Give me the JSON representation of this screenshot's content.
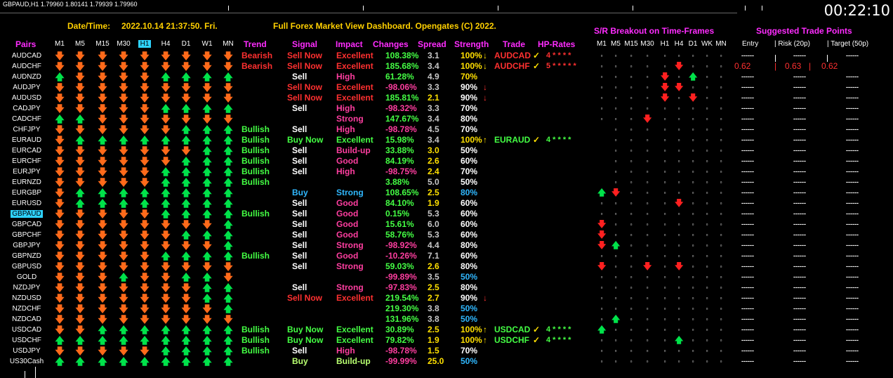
{
  "chart_title": "GBPAUD,H1  1.79960 1.80141 1.79939 1.79960",
  "clock": "00:22:10",
  "header": {
    "datetime_label": "Date/Time:",
    "datetime_value": "2022.10.14 21:37:50. Fri.",
    "title": "Full Forex Market View Dashboard. Opengates (C) 2022.",
    "sr_title": "S/R Breakout on Time-Frames",
    "suggest_title": "Suggested Trade Points"
  },
  "columns": {
    "pairs": "Pairs",
    "tfs": [
      "M1",
      "M5",
      "M15",
      "M30",
      "H1",
      "H4",
      "D1",
      "W1",
      "MN"
    ],
    "trend": "Trend",
    "signal": "Signal",
    "impact": "Impact",
    "changes": "Changes",
    "spread": "Spread",
    "strength": "Strength",
    "trade": "Trade",
    "hp": "HP-Rates"
  },
  "sr_columns": [
    "M1",
    "M5",
    "M15",
    "M30",
    "H1",
    "H4",
    "D1",
    "WK",
    "MN"
  ],
  "suggest_columns": {
    "entry": "Entry",
    "risk": "| Risk (20p)",
    "target": "| Target (50p)"
  },
  "rows": [
    {
      "pair": "AUDCAD",
      "arrows": "ddddddddd",
      "trend": "Bearish",
      "tc": "s-red",
      "signal": "Sell Now",
      "sc": "s-red",
      "impact": "Excellent",
      "ic": "s-red",
      "change": "108.38%",
      "cc": "s-grn",
      "spread": "3.1",
      "spc": "s-gray",
      "strength": "100%",
      "stc": "s-yel",
      "sta": "↓",
      "trade": "AUDCAD",
      "trc": "s-red",
      "check": "✓",
      "hp": "4 * * * *",
      "hpc": "s-red",
      "sr": "sssssssss",
      "dash": "------"
    },
    {
      "pair": "AUDCHF",
      "arrows": "ddddddddd",
      "trend": "Bearish",
      "tc": "s-red",
      "signal": "Sell Now",
      "sc": "s-red",
      "impact": "Excellent",
      "ic": "s-red",
      "change": "185.68%",
      "cc": "s-grn",
      "spread": "3.4",
      "spc": "s-gray",
      "strength": "100%",
      "stc": "s-yel",
      "sta": "↓",
      "trade": "AUDCHF",
      "trc": "s-red",
      "check": "✓",
      "hp": "5 * * * * *",
      "hpc": "s-red",
      "sr": "sssssDsss",
      "suggest": [
        "0.62",
        "0.63",
        "0.62"
      ],
      "dash": ""
    },
    {
      "pair": "AUDNZD",
      "arrows": "udddduuuu",
      "trend": "",
      "tc": "s-red",
      "signal": "Sell",
      "sc": "s-white",
      "impact": "High",
      "ic": "s-pink",
      "change": "61.28%",
      "cc": "s-grn",
      "spread": "4.9",
      "spc": "s-gray",
      "strength": "70%",
      "stc": "s-yel",
      "sta": "",
      "trade": "",
      "trc": "",
      "check": "",
      "hp": "",
      "hpc": "",
      "sr": "ssssDsUss",
      "dash": "------"
    },
    {
      "pair": "AUDJPY",
      "arrows": "ddddddddd",
      "trend": "",
      "tc": "",
      "signal": "Sell Now",
      "sc": "s-red",
      "impact": "Excellent",
      "ic": "s-red",
      "change": "-98.06%",
      "cc": "s-pink",
      "spread": "3.3",
      "spc": "s-gray",
      "strength": "90%",
      "stc": "s-white",
      "sta": "↓",
      "trade": "",
      "trc": "",
      "check": "",
      "hp": "",
      "hpc": "",
      "sr": "ssssDDsss",
      "dash": "------"
    },
    {
      "pair": "AUDUSD",
      "arrows": "ddddddddd",
      "trend": "",
      "tc": "",
      "signal": "Sell Now",
      "sc": "s-red",
      "impact": "Excellent",
      "ic": "s-red",
      "change": "185.81%",
      "cc": "s-grn",
      "spread": "2.1",
      "spc": "s-yel",
      "strength": "90%",
      "stc": "s-white",
      "sta": "↓",
      "trade": "",
      "trc": "",
      "check": "",
      "hp": "",
      "hpc": "",
      "sr": "ssssDsDss",
      "dash": "------"
    },
    {
      "pair": "CADJPY",
      "arrows": "ddddduuuu",
      "trend": "",
      "tc": "",
      "signal": "Sell",
      "sc": "s-white",
      "impact": "High",
      "ic": "s-pink",
      "change": "-98.32%",
      "cc": "s-pink",
      "spread": "3.3",
      "spc": "s-gray",
      "strength": "70%",
      "stc": "s-white",
      "sta": "",
      "trade": "",
      "trc": "",
      "check": "",
      "hp": "",
      "hpc": "",
      "sr": "sssssssss",
      "dash": "------"
    },
    {
      "pair": "CADCHF",
      "arrows": "uuddddddd",
      "trend": "",
      "tc": "",
      "signal": "",
      "sc": "",
      "impact": "Strong",
      "ic": "s-pink",
      "change": "147.67%",
      "cc": "s-grn",
      "spread": "3.4",
      "spc": "s-gray",
      "strength": "80%",
      "stc": "s-white",
      "sta": "",
      "trade": "",
      "trc": "",
      "check": "",
      "hp": "",
      "hpc": "",
      "sr": "sssDsssss",
      "dash": "------"
    },
    {
      "pair": "CHFJPY",
      "arrows": "dddddduuu",
      "trend": "Bullish",
      "tc": "s-grn",
      "signal": "Sell",
      "sc": "s-white",
      "impact": "High",
      "ic": "s-pink",
      "change": "-98.78%",
      "cc": "s-pink",
      "spread": "4.5",
      "spc": "s-gray",
      "strength": "70%",
      "stc": "s-white",
      "sta": "",
      "trade": "",
      "trc": "",
      "check": "",
      "hp": "",
      "hpc": "",
      "sr": "-ssssssss",
      "dash": "------"
    },
    {
      "pair": "EURAUD",
      "arrows": "duuuuuuuu",
      "trend": "Bullish",
      "tc": "s-grn",
      "signal": "Buy Now",
      "sc": "s-grn",
      "impact": "Excellent",
      "ic": "s-grn",
      "change": "15.98%",
      "cc": "s-grn",
      "spread": "3.4",
      "spc": "s-gray",
      "strength": "100%",
      "stc": "s-yel",
      "sta": "↑",
      "trade": "EURAUD",
      "trc": "s-grn",
      "check": "✓",
      "hp": "4 * * * *",
      "hpc": "s-grn",
      "sr": "-ssssssss",
      "dash": "------"
    },
    {
      "pair": "EURCAD",
      "arrows": "ddddddduu",
      "trend": "Bullish",
      "tc": "s-grn",
      "signal": "Sell",
      "sc": "s-white",
      "impact": "Build-up",
      "ic": "s-pink",
      "change": "33.88%",
      "cc": "s-grn",
      "spread": "3.0",
      "spc": "s-yel",
      "strength": "50%",
      "stc": "s-white",
      "sta": "",
      "trade": "",
      "trc": "",
      "check": "",
      "hp": "",
      "hpc": "",
      "sr": "-ssssssss",
      "dash": "------"
    },
    {
      "pair": "EURCHF",
      "arrows": "dddddduuu",
      "trend": "Bullish",
      "tc": "s-grn",
      "signal": "Sell",
      "sc": "s-white",
      "impact": "Good",
      "ic": "s-pink",
      "change": "84.19%",
      "cc": "s-grn",
      "spread": "2.6",
      "spc": "s-yel",
      "strength": "60%",
      "stc": "s-white",
      "sta": "",
      "trade": "",
      "trc": "",
      "check": "",
      "hp": "",
      "hpc": "",
      "sr": "-ssssssss",
      "dash": "------"
    },
    {
      "pair": "EURJPY",
      "arrows": "ddddduuuu",
      "trend": "Bullish",
      "tc": "s-grn",
      "signal": "Sell",
      "sc": "s-white",
      "impact": "High",
      "ic": "s-pink",
      "change": "-98.75%",
      "cc": "s-pink",
      "spread": "2.4",
      "spc": "s-yel",
      "strength": "70%",
      "stc": "s-white",
      "sta": "",
      "trade": "",
      "trc": "",
      "check": "",
      "hp": "",
      "hpc": "",
      "sr": "-ssssssss",
      "dash": "------"
    },
    {
      "pair": "EURNZD",
      "arrows": "ddddduuuu",
      "trend": "Bullish",
      "tc": "s-grn",
      "signal": "",
      "sc": "",
      "impact": "",
      "ic": "",
      "change": "3.88%",
      "cc": "s-grn",
      "spread": "5.0",
      "spc": "s-gray",
      "strength": "50%",
      "stc": "s-white",
      "sta": "",
      "trade": "",
      "trc": "",
      "check": "",
      "hp": "",
      "hpc": "",
      "sr": "-ssssssss",
      "dash": "------"
    },
    {
      "pair": "EURGBP",
      "arrows": "duuuuuuuu",
      "trend": "",
      "tc": "",
      "signal": "Buy",
      "sc": "s-cyan",
      "impact": "Strong",
      "ic": "s-cyan",
      "change": "108.65%",
      "cc": "s-grn",
      "spread": "2.5",
      "spc": "s-yel",
      "strength": "80%",
      "stc": "s-cyan",
      "sta": "",
      "trade": "",
      "trc": "",
      "check": "",
      "hp": "",
      "hpc": "",
      "sr": "UDsssssss",
      "dash": "------"
    },
    {
      "pair": "EURUSD",
      "arrows": "duuuuuuuu",
      "trend": "",
      "tc": "",
      "signal": "Sell",
      "sc": "s-white",
      "impact": "Good",
      "ic": "s-pink",
      "change": "84.10%",
      "cc": "s-grn",
      "spread": "1.9",
      "spc": "s-yel",
      "strength": "60%",
      "stc": "s-white",
      "sta": "",
      "trade": "",
      "trc": "",
      "check": "",
      "hp": "",
      "hpc": "",
      "sr": "sssssDsss",
      "dash": "------"
    },
    {
      "pair": "GBPAUD",
      "sel": true,
      "arrows": "ddddduuuu",
      "trend": "Bullish",
      "tc": "s-grn",
      "signal": "Sell",
      "sc": "s-white",
      "impact": "Good",
      "ic": "s-pink",
      "change": "0.15%",
      "cc": "s-grn",
      "spread": "5.3",
      "spc": "s-gray",
      "strength": "60%",
      "stc": "s-white",
      "sta": "",
      "trade": "",
      "trc": "",
      "check": "",
      "hp": "",
      "hpc": "",
      "sr": "sssssssss",
      "dash": "------"
    },
    {
      "pair": "GBPCAD",
      "arrows": "ddddddddu",
      "trend": "",
      "tc": "",
      "signal": "Sell",
      "sc": "s-white",
      "impact": "Good",
      "ic": "s-pink",
      "change": "15.61%",
      "cc": "s-grn",
      "spread": "6.0",
      "spc": "s-gray",
      "strength": "60%",
      "stc": "s-white",
      "sta": "",
      "trade": "",
      "trc": "",
      "check": "",
      "hp": "",
      "hpc": "",
      "sr": "Dssssssss",
      "dash": "------"
    },
    {
      "pair": "GBPCHF",
      "arrows": "dddddduuu",
      "trend": "",
      "tc": "",
      "signal": "Sell",
      "sc": "s-white",
      "impact": "Good",
      "ic": "s-pink",
      "change": "58.76%",
      "cc": "s-grn",
      "spread": "5.3",
      "spc": "s-gray",
      "strength": "60%",
      "stc": "s-white",
      "sta": "",
      "trade": "",
      "trc": "",
      "check": "",
      "hp": "",
      "hpc": "",
      "sr": "Dssssssss",
      "dash": "------"
    },
    {
      "pair": "GBPJPY",
      "arrows": "ddddddddu",
      "trend": "",
      "tc": "",
      "signal": "Sell",
      "sc": "s-white",
      "impact": "Strong",
      "ic": "s-pink",
      "change": "-98.92%",
      "cc": "s-pink",
      "spread": "4.4",
      "spc": "s-gray",
      "strength": "80%",
      "stc": "s-white",
      "sta": "",
      "trade": "",
      "trc": "",
      "check": "",
      "hp": "",
      "hpc": "",
      "sr": "DUsssssss",
      "dash": "------"
    },
    {
      "pair": "GBPNZD",
      "arrows": "ddddduuuu",
      "trend": "Bullish",
      "tc": "s-grn",
      "signal": "Sell",
      "sc": "s-white",
      "impact": "Good",
      "ic": "s-pink",
      "change": "-10.26%",
      "cc": "s-pink",
      "spread": "7.1",
      "spc": "s-gray",
      "strength": "60%",
      "stc": "s-white",
      "sta": "",
      "trade": "",
      "trc": "",
      "check": "",
      "hp": "",
      "hpc": "",
      "sr": "sssssssss",
      "dash": "------"
    },
    {
      "pair": "GBPUSD",
      "arrows": "ddddddddd",
      "trend": "",
      "tc": "",
      "signal": "Sell",
      "sc": "s-white",
      "impact": "Strong",
      "ic": "s-pink",
      "change": "59.03%",
      "cc": "s-grn",
      "spread": "2.6",
      "spc": "s-yel",
      "strength": "80%",
      "stc": "s-white",
      "sta": "",
      "trade": "",
      "trc": "",
      "check": "",
      "hp": "",
      "hpc": "",
      "sr": "DssDsDsss",
      "dash": "------"
    },
    {
      "pair": "GOLD",
      "arrows": "dddudduud",
      "trend": "",
      "tc": "",
      "signal": "",
      "sc": "",
      "impact": "",
      "ic": "",
      "change": "-99.89%",
      "cc": "s-pink",
      "spread": "3.5",
      "spc": "s-gray",
      "strength": "50%",
      "stc": "s-cyan",
      "sta": "",
      "trade": "",
      "trc": "",
      "check": "",
      "hp": "",
      "hpc": "",
      "sr": "sssssssss",
      "dash": "------"
    },
    {
      "pair": "NZDJPY",
      "arrows": "ddddddduu",
      "trend": "",
      "tc": "",
      "signal": "Sell",
      "sc": "s-white",
      "impact": "Strong",
      "ic": "s-pink",
      "change": "-97.83%",
      "cc": "s-pink",
      "spread": "2.5",
      "spc": "s-yel",
      "strength": "80%",
      "stc": "s-white",
      "sta": "",
      "trade": "",
      "trc": "",
      "check": "",
      "hp": "",
      "hpc": "",
      "sr": "sssssssss",
      "dash": "------"
    },
    {
      "pair": "NZDUSD",
      "arrows": "ddddddduu",
      "trend": "",
      "tc": "",
      "signal": "Sell Now",
      "sc": "s-red",
      "impact": "Excellent",
      "ic": "s-red",
      "change": "219.54%",
      "cc": "s-grn",
      "spread": "2.7",
      "spc": "s-yel",
      "strength": "90%",
      "stc": "s-white",
      "sta": "↓",
      "trade": "",
      "trc": "",
      "check": "",
      "hp": "",
      "hpc": "",
      "sr": "sssssssss",
      "dash": "------"
    },
    {
      "pair": "NZDCHF",
      "arrows": "ddddddddu",
      "trend": "",
      "tc": "",
      "signal": "",
      "sc": "",
      "impact": "",
      "ic": "",
      "change": "219.30%",
      "cc": "s-grn",
      "spread": "3.8",
      "spc": "s-gray",
      "strength": "50%",
      "stc": "s-cyan",
      "sta": "",
      "trade": "",
      "trc": "",
      "check": "",
      "hp": "",
      "hpc": "",
      "sr": "sssssssss",
      "dash": "------"
    },
    {
      "pair": "NZDCAD",
      "arrows": "ddddddddd",
      "trend": "",
      "tc": "",
      "signal": "",
      "sc": "",
      "impact": "",
      "ic": "",
      "change": "131.96%",
      "cc": "s-grn",
      "spread": "3.8",
      "spc": "s-gray",
      "strength": "50%",
      "stc": "s-cyan",
      "sta": "",
      "trade": "",
      "trc": "",
      "check": "",
      "hp": "",
      "hpc": "",
      "sr": "sUsssssss",
      "dash": "------"
    },
    {
      "pair": "USDCAD",
      "arrows": "dduuuuuuu",
      "trend": "Bullish",
      "tc": "s-grn",
      "signal": "Buy Now",
      "sc": "s-grn",
      "impact": "Excellent",
      "ic": "s-grn",
      "change": "30.89%",
      "cc": "s-grn",
      "spread": "2.5",
      "spc": "s-yel",
      "strength": "100%",
      "stc": "s-yel",
      "sta": "↑",
      "trade": "USDCAD",
      "trc": "s-grn",
      "check": "✓",
      "hp": "4 * * * *",
      "hpc": "s-grn",
      "sr": "Usssssss s",
      "dash": "------"
    },
    {
      "pair": "USDCHF",
      "arrows": "uuuuuuuuu",
      "trend": "Bullish",
      "tc": "s-grn",
      "signal": "Buy Now",
      "sc": "s-grn",
      "impact": "Excellent",
      "ic": "s-grn",
      "change": "79.82%",
      "cc": "s-grn",
      "spread": "1.9",
      "spc": "s-yel",
      "strength": "100%",
      "stc": "s-yel",
      "sta": "↑",
      "trade": "USDCHF",
      "trc": "s-grn",
      "check": "✓",
      "hp": "4 * * * *",
      "hpc": "s-grn",
      "sr": "sssssUsss",
      "dash": "------"
    },
    {
      "pair": "USDJPY",
      "arrows": "ddddduuuu",
      "trend": "Bullish",
      "tc": "s-grn",
      "signal": "Sell",
      "sc": "s-white",
      "impact": "High",
      "ic": "s-pink",
      "change": "-98.78%",
      "cc": "s-pink",
      "spread": "1.5",
      "spc": "s-yel",
      "strength": "70%",
      "stc": "s-white",
      "sta": "",
      "trade": "",
      "trc": "",
      "check": "",
      "hp": "",
      "hpc": "",
      "sr": "sssssssss",
      "dash": "------"
    },
    {
      "pair": "US30Cash",
      "arrows": "uuuuuuuuu",
      "trend": "",
      "tc": "",
      "signal": "Buy",
      "sc": "s-lime",
      "impact": "Build-up",
      "ic": "s-lime",
      "change": "-99.99%",
      "cc": "s-pink",
      "spread": "25.0",
      "spc": "s-yel",
      "strength": "50%",
      "stc": "s-cyan",
      "sta": "",
      "trade": "",
      "trc": "",
      "check": "",
      "hp": "",
      "hpc": "",
      "sr": "sssssssss",
      "dash": "------"
    }
  ]
}
